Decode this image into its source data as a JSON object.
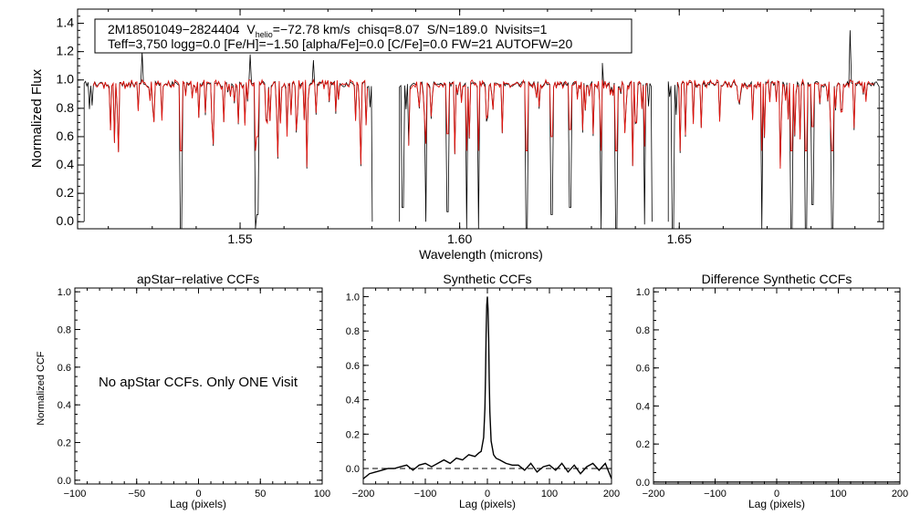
{
  "colors": {
    "observed": "#000000",
    "model": "#e0120c",
    "axis": "#000000",
    "background": "#ffffff"
  },
  "chart_data": [
    {
      "id": "spectrum",
      "type": "line",
      "xlabel": "Wavelength (microns)",
      "ylabel": "Normalized Flux",
      "xlim": [
        1.513,
        1.6965
      ],
      "ylim": [
        -0.05,
        1.5
      ],
      "xticks": [
        1.55,
        1.6,
        1.65
      ],
      "xtick_labels": [
        "1.55",
        "1.60",
        "1.65"
      ],
      "yticks": [
        0.0,
        0.2,
        0.4,
        0.6,
        0.8,
        1.0,
        1.2,
        1.4
      ],
      "ytick_labels": [
        "0.0",
        "0.2",
        "0.4",
        "0.6",
        "0.8",
        "1.0",
        "1.2",
        "1.4"
      ],
      "chips": [
        [
          1.5145,
          1.5801
        ],
        [
          1.5863,
          1.6438
        ],
        [
          1.6475,
          1.6955
        ]
      ],
      "continuum": 0.97,
      "deep_lines": [
        {
          "w": 1.5365,
          "d": -0.05
        },
        {
          "w": 1.5536,
          "d": -0.05
        },
        {
          "w": 1.5539,
          "d": 0.05
        },
        {
          "w": 1.587,
          "d": 0.1
        },
        {
          "w": 1.5923,
          "d": 0.0
        },
        {
          "w": 1.5972,
          "d": 0.07
        },
        {
          "w": 1.6016,
          "d": -0.05
        },
        {
          "w": 1.6043,
          "d": -0.05
        },
        {
          "w": 1.6152,
          "d": -0.05
        },
        {
          "w": 1.6209,
          "d": 0.05
        },
        {
          "w": 1.6251,
          "d": 0.1
        },
        {
          "w": 1.6324,
          "d": -0.05
        },
        {
          "w": 1.6356,
          "d": -0.05
        },
        {
          "w": 1.6421,
          "d": -0.02
        },
        {
          "w": 1.6486,
          "d": -0.05
        },
        {
          "w": 1.6688,
          "d": -0.05
        },
        {
          "w": 1.6756,
          "d": -0.05
        },
        {
          "w": 1.6788,
          "d": -0.05
        },
        {
          "w": 1.6803,
          "d": 0.12
        },
        {
          "w": 1.6848,
          "d": -0.05
        }
      ],
      "emission_spikes": [
        {
          "w": 1.5278,
          "h": 1.2
        },
        {
          "w": 1.5524,
          "h": 1.18
        },
        {
          "w": 1.5668,
          "h": 1.14
        },
        {
          "w": 1.6325,
          "h": 1.12
        },
        {
          "w": 1.6888,
          "h": 1.35
        }
      ],
      "legend_line1": {
        "star": "2M18501049−2824404",
        "vhelio_label": "V",
        "vhelio_sub": "helio",
        "vhelio_value": "=−72.78 km/s",
        "chisq": "chisq=8.07",
        "sn": "S/N=189.0",
        "nvisits": "Nvisits=1"
      },
      "legend_line2": "Teff=3,750 logg=0.0 [Fe/H]=−1.50 [alpha/Fe]=0.0 [C/Fe]=0.0 FW=21 AUTOFW=20"
    },
    {
      "id": "apstar_ccf",
      "type": "line",
      "title": "apStar−relative CCFs",
      "xlabel": "Lag (pixels)",
      "ylabel": "Normalized CCF",
      "xlim": [
        -100,
        100
      ],
      "ylim": [
        -0.02,
        1.02
      ],
      "xticks": [
        -100,
        -50,
        0,
        50,
        100
      ],
      "xtick_labels": [
        "−100",
        "−50",
        "0",
        "50",
        "100"
      ],
      "yticks": [
        0.0,
        0.2,
        0.4,
        0.6,
        0.8,
        1.0
      ],
      "ytick_labels": [
        "0.0",
        "0.2",
        "0.4",
        "0.6",
        "0.8",
        "1.0"
      ],
      "annotation": "No apStar CCFs.  Only ONE Visit",
      "series": []
    },
    {
      "id": "synthetic_ccf",
      "type": "line",
      "title": "Synthetic CCFs",
      "xlabel": "Lag (pixels)",
      "xlim": [
        -200,
        200
      ],
      "ylim": [
        -0.09,
        1.05
      ],
      "xticks": [
        -200,
        -100,
        0,
        100,
        200
      ],
      "xtick_labels": [
        "−200",
        "−100",
        "0",
        "100",
        "200"
      ],
      "yticks": [
        0.0,
        0.2,
        0.4,
        0.6,
        0.8,
        1.0
      ],
      "ytick_labels": [
        "0.0",
        "0.2",
        "0.4",
        "0.6",
        "0.8",
        "1.0"
      ],
      "zero_line": 0.0,
      "peak": {
        "x": 0,
        "y": 1.0
      },
      "series": [
        {
          "name": "ccf",
          "x": [
            -200,
            -190,
            -180,
            -170,
            -160,
            -150,
            -140,
            -130,
            -120,
            -110,
            -100,
            -90,
            -80,
            -70,
            -60,
            -50,
            -40,
            -30,
            -20,
            -14,
            -10,
            -6,
            -4,
            -3,
            -2,
            -1,
            0,
            1,
            2,
            3,
            4,
            6,
            10,
            14,
            20,
            30,
            40,
            50,
            60,
            70,
            80,
            90,
            100,
            110,
            120,
            130,
            140,
            150,
            160,
            170,
            180,
            190,
            200
          ],
          "y": [
            -0.06,
            -0.03,
            -0.02,
            -0.01,
            0.0,
            0.0,
            0.01,
            0.02,
            -0.01,
            0.02,
            0.03,
            0.01,
            0.03,
            0.05,
            0.03,
            0.06,
            0.05,
            0.08,
            0.07,
            0.09,
            0.1,
            0.18,
            0.35,
            0.55,
            0.78,
            0.95,
            1.0,
            0.93,
            0.76,
            0.52,
            0.33,
            0.16,
            0.08,
            0.06,
            0.05,
            0.03,
            0.02,
            0.02,
            -0.01,
            0.03,
            -0.02,
            0.01,
            0.02,
            -0.01,
            0.03,
            -0.02,
            0.02,
            -0.03,
            0.01,
            0.03,
            -0.01,
            0.03,
            -0.06
          ]
        }
      ]
    },
    {
      "id": "difference_ccf",
      "type": "line",
      "title": "Difference Synthetic CCFs",
      "xlabel": "Lag (pixels)",
      "xlim": [
        -200,
        200
      ],
      "ylim": [
        -0.01,
        1.02
      ],
      "xticks": [
        -200,
        -100,
        0,
        100,
        200
      ],
      "xtick_labels": [
        "−200",
        "−100",
        "0",
        "100",
        "200"
      ],
      "yticks": [
        0.0,
        0.2,
        0.4,
        0.6,
        0.8,
        1.0
      ],
      "ytick_labels": [
        "0.0",
        "0.2",
        "0.4",
        "0.6",
        "0.8",
        "1.0"
      ],
      "series": [
        {
          "name": "difference",
          "x": [
            -200,
            200
          ],
          "y": [
            0.0,
            0.0
          ]
        }
      ]
    }
  ]
}
